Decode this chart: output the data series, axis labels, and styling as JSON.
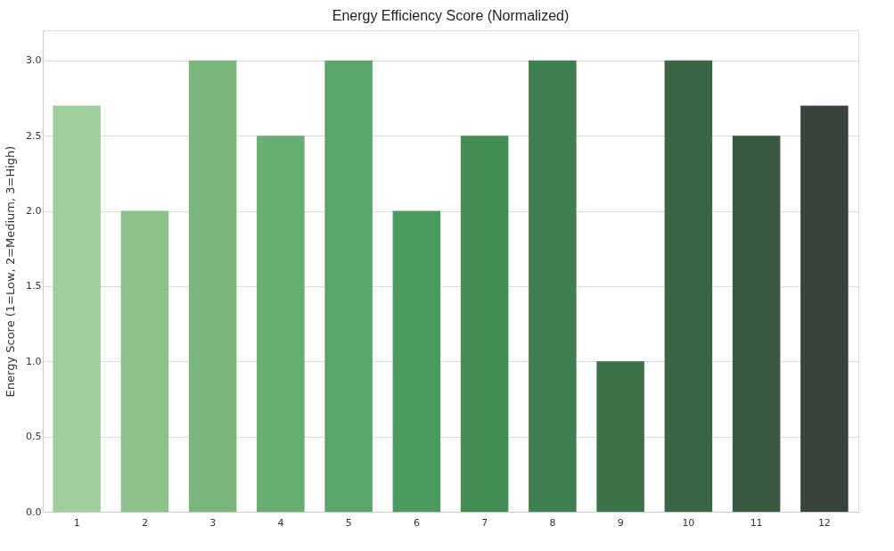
{
  "chart_data": {
    "type": "bar",
    "title": "Energy Efficiency Score (Normalized)",
    "ylabel": "Energy Score (1=Low, 2=Medium, 3=High)",
    "categories": [
      "1",
      "2",
      "3",
      "4",
      "5",
      "6",
      "7",
      "8",
      "9",
      "10",
      "11",
      "12"
    ],
    "values": [
      2.7,
      2.0,
      3.0,
      2.5,
      3.0,
      2.0,
      2.5,
      3.0,
      1.0,
      3.0,
      2.5,
      2.7
    ],
    "colors": [
      "#a1cc9c",
      "#8cc289",
      "#7ab77c",
      "#68ad72",
      "#5aa56b",
      "#4a9a5e",
      "#448e56",
      "#3f8050",
      "#3c724a",
      "#3a6645",
      "#385a41",
      "#37433b"
    ],
    "ylim": [
      0,
      3.2
    ],
    "yticks": [
      {
        "value": 0,
        "label": "0.0"
      },
      {
        "value": 0.5,
        "label": "0.5"
      },
      {
        "value": 1,
        "label": "1.0"
      },
      {
        "value": 1.5,
        "label": "1.5"
      },
      {
        "value": 2,
        "label": "2.0"
      },
      {
        "value": 2.5,
        "label": "2.5"
      },
      {
        "value": 3,
        "label": "3.0"
      }
    ],
    "grid": "y"
  }
}
